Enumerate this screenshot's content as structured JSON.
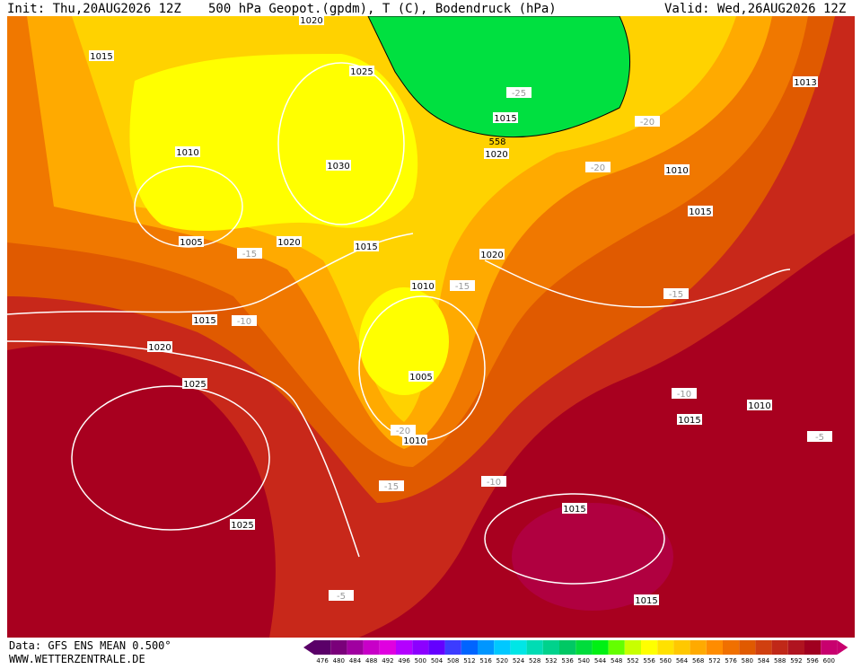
{
  "header": {
    "init": "Init: Thu,20AUG2026 12Z",
    "title": "500 hPa Geopot.(gpdm), T (C), Bodendruck (hPa)",
    "valid": "Valid: Wed,26AUG2026 12Z"
  },
  "footer": {
    "data": "Data: GFS ENS MEAN 0.500°",
    "site": "WWW.WETTERZENTRALE.DE"
  },
  "map": {
    "pressure_labels": [
      "1020",
      "1015",
      "1025",
      "1013",
      "1015",
      "1020",
      "1010",
      "1030",
      "1010",
      "1015",
      "1005",
      "1020",
      "1015",
      "1020",
      "1010",
      "1015",
      "1020",
      "1005",
      "1025",
      "1010",
      "1015",
      "1010",
      "1015",
      "1025",
      "1015"
    ],
    "geopotential_labels": [
      "558"
    ],
    "temperature_labels": [
      "-25",
      "-20",
      "-20",
      "-15",
      "-15",
      "-15",
      "-10",
      "-10",
      "-20",
      "-15",
      "-10",
      "-5",
      "-5"
    ]
  },
  "colorbar": {
    "labels": [
      476,
      480,
      484,
      488,
      492,
      496,
      500,
      504,
      508,
      512,
      516,
      520,
      524,
      528,
      532,
      536,
      540,
      544,
      548,
      552,
      556,
      560,
      564,
      568,
      572,
      576,
      580,
      584,
      588,
      592,
      596,
      600
    ],
    "colors": [
      "#5a0068",
      "#7a007a",
      "#a000a0",
      "#c800c8",
      "#e000e0",
      "#b400ff",
      "#8c00ff",
      "#6400ff",
      "#3c3cff",
      "#0064ff",
      "#0096ff",
      "#00c8ff",
      "#00e6e6",
      "#00dcb4",
      "#00d28c",
      "#00c864",
      "#00dc3c",
      "#00f014",
      "#64ff00",
      "#c8ff00",
      "#ffff00",
      "#ffe100",
      "#ffc800",
      "#ffaa00",
      "#ff8c00",
      "#f07000",
      "#e05a00",
      "#d04010",
      "#c02818",
      "#b01420",
      "#a00020",
      "#c8006e"
    ]
  }
}
